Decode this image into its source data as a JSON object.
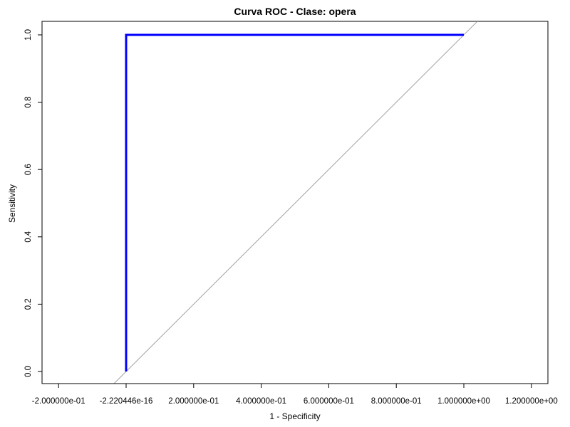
{
  "chart_data": {
    "type": "line",
    "title": "Curva ROC - Clase: opera",
    "xlabel": "1 - Specificity",
    "ylabel": "Sensitivity",
    "xlim": [
      -0.2,
      1.2
    ],
    "ylim": [
      0,
      1
    ],
    "x_ticks": [
      -0.2,
      -2.220446e-16,
      0.2,
      0.4,
      0.6,
      0.8,
      1.0,
      1.2
    ],
    "x_tick_labels": [
      "-2.000000e-01",
      "-2.220446e-16",
      "2.000000e-01",
      "4.000000e-01",
      "6.000000e-01",
      "8.000000e-01",
      "1.000000e+00",
      "1.200000e+00"
    ],
    "y_ticks": [
      0,
      0.2,
      0.4,
      0.6,
      0.8,
      1.0
    ],
    "y_tick_labels": [
      "0.0",
      "0.2",
      "0.4",
      "0.6",
      "0.8",
      "1.0"
    ],
    "grid": false,
    "legend": "none",
    "series": [
      {
        "x": [
          0,
          0,
          1
        ],
        "y": [
          0,
          1,
          1
        ],
        "color": "#0000ff"
      }
    ],
    "reference_line": {
      "x": [
        -0.04,
        1.04
      ],
      "y": [
        -0.04,
        1.04
      ],
      "color": "#a0a0a0"
    }
  }
}
